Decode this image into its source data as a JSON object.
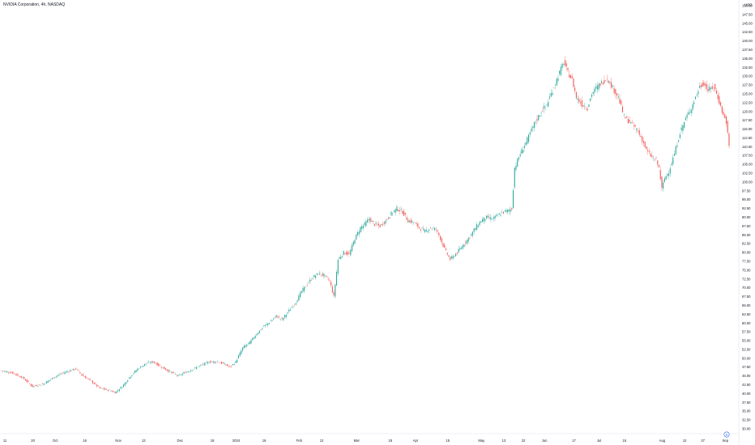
{
  "header": {
    "title": "NVIDIA Corporation, 4h, NASDAQ"
  },
  "chart_data": {
    "type": "candlestick",
    "title": "NVIDIA Corporation, 4h, NASDAQ",
    "currency": "USD",
    "colors": {
      "up": "#26a69a",
      "down": "#ef5350",
      "background": "#ffffff",
      "axis_text": "#131722"
    },
    "ylim": [
      30,
      150
    ],
    "y_ticks": [
      "150.00",
      "147.50",
      "145.00",
      "142.50",
      "140.00",
      "137.50",
      "135.00",
      "132.50",
      "130.00",
      "127.50",
      "125.00",
      "122.50",
      "120.00",
      "117.50",
      "115.00",
      "112.50",
      "110.00",
      "107.50",
      "105.00",
      "102.50",
      "100.00",
      "97.50",
      "95.00",
      "92.50",
      "90.00",
      "87.50",
      "85.00",
      "82.50",
      "80.00",
      "77.50",
      "75.00",
      "72.50",
      "70.00",
      "67.50",
      "65.00",
      "62.50",
      "60.00",
      "57.50",
      "55.00",
      "52.50",
      "50.00",
      "47.50",
      "45.00",
      "42.50",
      "40.00",
      "37.50",
      "35.00",
      "32.50",
      "30.00"
    ],
    "x_ticks": [
      {
        "label": "11",
        "index": 0
      },
      {
        "label": "20",
        "index": 20
      },
      {
        "label": "Oct",
        "index": 36
      },
      {
        "label": "16",
        "index": 57
      },
      {
        "label": "Nov",
        "index": 81
      },
      {
        "label": "13",
        "index": 99
      },
      {
        "label": "Dec",
        "index": 125
      },
      {
        "label": "18",
        "index": 148
      },
      {
        "label": "2024",
        "index": 165
      },
      {
        "label": "16",
        "index": 185
      },
      {
        "label": "Feb",
        "index": 210
      },
      {
        "label": "12",
        "index": 226
      },
      {
        "label": "Mar",
        "index": 251
      },
      {
        "label": "18",
        "index": 275
      },
      {
        "label": "Apr",
        "index": 293
      },
      {
        "label": "15",
        "index": 316
      },
      {
        "label": "May",
        "index": 340
      },
      {
        "label": "13",
        "index": 356
      },
      {
        "label": "22",
        "index": 370
      },
      {
        "label": "Jun",
        "index": 385
      },
      {
        "label": "17",
        "index": 406
      },
      {
        "label": "Jul",
        "index": 424
      },
      {
        "label": "15",
        "index": 442
      },
      {
        "label": "Aug",
        "index": 469
      },
      {
        "label": "12",
        "index": 485
      },
      {
        "label": "27",
        "index": 498
      },
      {
        "label": "Sep",
        "index": 514
      }
    ],
    "anchors": [
      [
        0,
        46.5
      ],
      [
        8,
        45.8
      ],
      [
        15,
        44.5
      ],
      [
        22,
        42.0
      ],
      [
        30,
        42.8
      ],
      [
        38,
        44.8
      ],
      [
        46,
        46.2
      ],
      [
        53,
        47.0
      ],
      [
        58,
        45.0
      ],
      [
        64,
        43.5
      ],
      [
        70,
        41.5
      ],
      [
        76,
        41.0
      ],
      [
        81,
        40.3
      ],
      [
        86,
        42.0
      ],
      [
        92,
        45.0
      ],
      [
        97,
        47.0
      ],
      [
        103,
        48.5
      ],
      [
        108,
        49.0
      ],
      [
        114,
        47.5
      ],
      [
        120,
        46.2
      ],
      [
        126,
        45.0
      ],
      [
        131,
        46.0
      ],
      [
        137,
        47.0
      ],
      [
        142,
        48.0
      ],
      [
        148,
        49.0
      ],
      [
        154,
        49.0
      ],
      [
        158,
        48.5
      ],
      [
        163,
        47.5
      ],
      [
        167,
        49.0
      ],
      [
        172,
        53.0
      ],
      [
        177,
        54.5
      ],
      [
        182,
        57.0
      ],
      [
        187,
        59.0
      ],
      [
        192,
        60.5
      ],
      [
        196,
        62.0
      ],
      [
        200,
        61.0
      ],
      [
        205,
        63.5
      ],
      [
        210,
        66.0
      ],
      [
        214,
        69.0
      ],
      [
        219,
        71.5
      ],
      [
        222,
        73.0
      ],
      [
        226,
        74.0
      ],
      [
        230,
        73.5
      ],
      [
        234,
        72.0
      ],
      [
        237,
        67.5
      ],
      [
        240,
        78.0
      ],
      [
        244,
        80.0
      ],
      [
        248,
        79.5
      ],
      [
        252,
        84.0
      ],
      [
        256,
        87.0
      ],
      [
        259,
        88.0
      ],
      [
        262,
        89.5
      ],
      [
        266,
        88.0
      ],
      [
        270,
        87.5
      ],
      [
        274,
        89.0
      ],
      [
        278,
        91.0
      ],
      [
        282,
        92.5
      ],
      [
        286,
        91.5
      ],
      [
        290,
        89.0
      ],
      [
        294,
        88.5
      ],
      [
        298,
        87.0
      ],
      [
        302,
        86.0
      ],
      [
        306,
        87.0
      ],
      [
        310,
        86.5
      ],
      [
        313,
        84.0
      ],
      [
        316,
        81.0
      ],
      [
        320,
        78.0
      ],
      [
        325,
        80.0
      ],
      [
        330,
        82.5
      ],
      [
        334,
        84.5
      ],
      [
        338,
        87.0
      ],
      [
        342,
        89.0
      ],
      [
        346,
        90.0
      ],
      [
        350,
        89.5
      ],
      [
        354,
        90.5
      ],
      [
        358,
        91.5
      ],
      [
        362,
        92.0
      ],
      [
        364,
        92.5
      ],
      [
        366,
        104.0
      ],
      [
        370,
        108.0
      ],
      [
        375,
        112.0
      ],
      [
        380,
        116.5
      ],
      [
        385,
        120.0
      ],
      [
        389,
        122.0
      ],
      [
        393,
        126.0
      ],
      [
        397,
        130.0
      ],
      [
        401,
        134.0
      ],
      [
        404,
        131.0
      ],
      [
        407,
        129.0
      ],
      [
        410,
        124.0
      ],
      [
        414,
        122.0
      ],
      [
        418,
        121.0
      ],
      [
        421,
        125.0
      ],
      [
        425,
        127.0
      ],
      [
        429,
        128.5
      ],
      [
        432,
        129.5
      ],
      [
        434,
        128.0
      ],
      [
        437,
        126.0
      ],
      [
        440,
        124.0
      ],
      [
        444,
        118.5
      ],
      [
        448,
        117.0
      ],
      [
        453,
        115.0
      ],
      [
        457,
        112.0
      ],
      [
        460,
        109.0
      ],
      [
        464,
        107.0
      ],
      [
        467,
        106.0
      ],
      [
        469,
        104.0
      ],
      [
        471,
        98.0
      ],
      [
        473,
        101.0
      ],
      [
        476,
        103.0
      ],
      [
        480,
        108.0
      ],
      [
        484,
        114.0
      ],
      [
        488,
        118.0
      ],
      [
        492,
        121.0
      ],
      [
        495,
        124.0
      ],
      [
        498,
        127.0
      ],
      [
        501,
        128.0
      ],
      [
        504,
        126.0
      ],
      [
        508,
        127.0
      ],
      [
        511,
        124.0
      ],
      [
        514,
        120.0
      ],
      [
        517,
        117.0
      ],
      [
        519,
        110.0
      ]
    ],
    "price_markers": [
      {
        "label": "Sep",
        "color": "#2962ff"
      }
    ]
  }
}
